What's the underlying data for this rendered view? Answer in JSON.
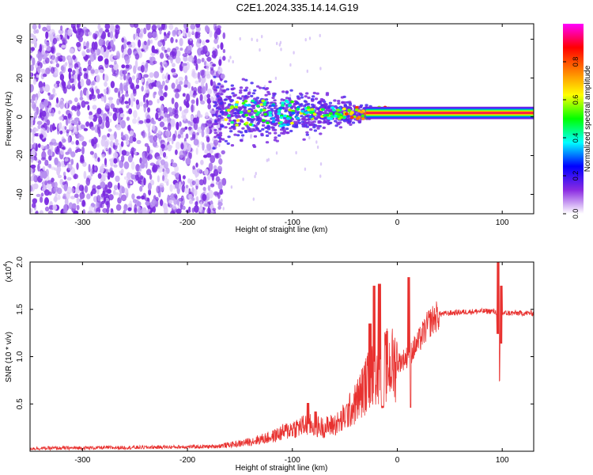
{
  "title": "C2E1.2024.335.14.14.G19",
  "chart_data": [
    {
      "type": "heatmap",
      "xlabel": "Height of straight line (km)",
      "ylabel": "Frequency (Hz)",
      "xlim": [
        -350,
        130
      ],
      "ylim": [
        -50,
        48
      ],
      "xticks": [
        -300,
        -200,
        -100,
        0,
        100
      ],
      "yticks": [
        -40,
        -20,
        0,
        20,
        40
      ],
      "xtick_labels": [
        "-300",
        "-200",
        "-100",
        "0",
        "100"
      ],
      "ytick_labels": [
        "-40",
        "-20",
        "0",
        "20",
        "40"
      ],
      "colorbar": {
        "label": "Normalized spectral amplitude",
        "range": [
          0,
          1
        ],
        "ticks": [
          0.0,
          0.2,
          0.4,
          0.6,
          0.8
        ],
        "tick_labels": [
          "0.0",
          "0.2",
          "0.4",
          "0.6",
          "0.8"
        ],
        "colormap": [
          "#ffffff",
          "#8a2be2",
          "#0000ff",
          "#00ffff",
          "#00ff00",
          "#ffff00",
          "#ff8000",
          "#ff0000",
          "#ff00ff"
        ]
      },
      "features": {
        "noise_region_x": [
          -350,
          -175
        ],
        "signal_band_frequency_hz": 2,
        "signal_onset_x": -175,
        "blob_color": "#7b2be0"
      }
    },
    {
      "type": "line",
      "xlabel": "Height of straight line (km)",
      "ylabel": "SNR (10 * v/v)",
      "multiplier_label": "(x10",
      "multiplier_exp": "4",
      "multiplier_close": ")",
      "xlim": [
        -350,
        130
      ],
      "ylim": [
        0,
        20000
      ],
      "xticks": [
        -300,
        -200,
        -100,
        0,
        100
      ],
      "yticks": [
        5000,
        10000,
        15000,
        20000
      ],
      "xtick_labels": [
        "-300",
        "-200",
        "-100",
        "0",
        "100"
      ],
      "ytick_labels": [
        "0.5",
        "1.0",
        "1.5",
        "2.0"
      ],
      "series_color": "#e8312f",
      "profile": {
        "x": [
          -350,
          -250,
          -175,
          -150,
          -120,
          -100,
          -85,
          -70,
          -55,
          -40,
          -30,
          -20,
          -10,
          0,
          10,
          20,
          30,
          40,
          60,
          80,
          90,
          100,
          110,
          130
        ],
        "y": [
          300,
          400,
          500,
          800,
          1500,
          2400,
          2800,
          2500,
          3000,
          5000,
          7000,
          8600,
          9000,
          9300,
          10000,
          11500,
          13500,
          14500,
          14700,
          14800,
          14800,
          14600,
          14600,
          14600
        ]
      },
      "spikes": [
        {
          "x": -85,
          "y": 5100
        },
        {
          "x": -78,
          "y": 4200
        },
        {
          "x": -26,
          "y": 13500
        },
        {
          "x": -22,
          "y": 17500
        },
        {
          "x": -17,
          "y": 17700
        },
        {
          "x": -14,
          "y": 4800
        },
        {
          "x": 11,
          "y": 18400
        },
        {
          "x": 12,
          "y": 4600
        },
        {
          "x": 96,
          "y": 20000
        },
        {
          "x": 97,
          "y": 7500
        },
        {
          "x": 99,
          "y": 17500
        }
      ]
    }
  ]
}
